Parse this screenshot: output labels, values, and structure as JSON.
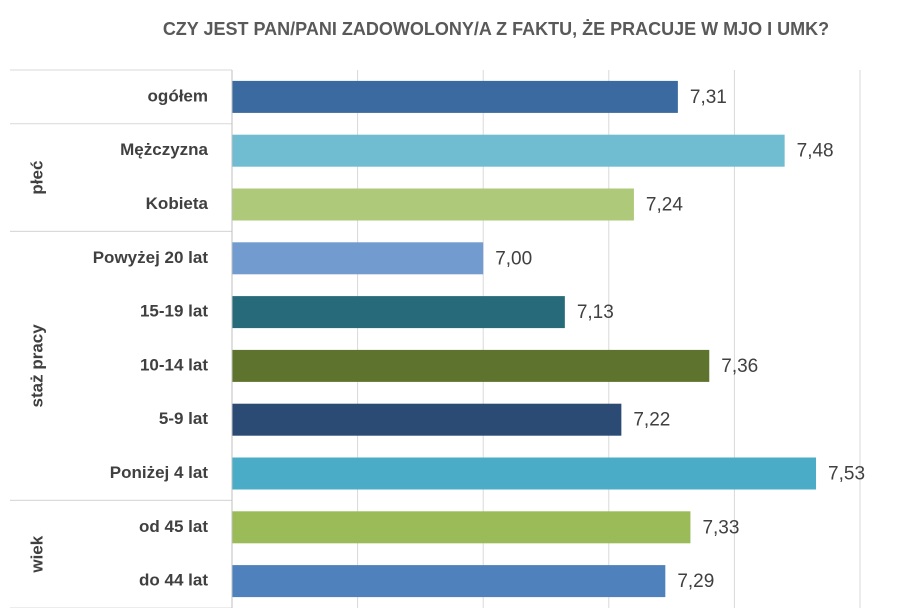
{
  "chart_data": {
    "type": "bar",
    "orientation": "horizontal",
    "title": "CZY JEST PAN/PANI ZADOWOLONY/A Z FAKTU, ŻE PRACUJE W MJO I UMK?",
    "categories": [
      "ogółem",
      "Mężczyzna",
      "Kobieta",
      "Powyżej 20 lat",
      "15-19 lat",
      "10-14 lat",
      "5-9 lat",
      "Poniżej 4 lat",
      "od 45 lat",
      "do 44 lat"
    ],
    "values": [
      7.31,
      7.48,
      7.24,
      7.0,
      7.13,
      7.36,
      7.22,
      7.53,
      7.33,
      7.29
    ],
    "value_labels": [
      "7,31",
      "7,48",
      "7,24",
      "7,00",
      "7,13",
      "7,36",
      "7,22",
      "7,53",
      "7,33",
      "7,29"
    ],
    "colors": [
      "#3a6aa0",
      "#70bcd1",
      "#aec97a",
      "#729bcf",
      "#276b7a",
      "#5e742e",
      "#2c4b74",
      "#4aacc6",
      "#9bbb59",
      "#4f81bd"
    ],
    "groups": [
      {
        "label": "płeć",
        "first": 1,
        "size": 2
      },
      {
        "label": "staż pracy",
        "first": 3,
        "size": 5
      },
      {
        "label": "wiek",
        "first": 8,
        "size": 2
      }
    ],
    "xlim": [
      6.6,
      7.6
    ],
    "xticks": [
      6.6,
      6.8,
      7.0,
      7.2,
      7.4,
      7.6
    ],
    "grid": true
  }
}
